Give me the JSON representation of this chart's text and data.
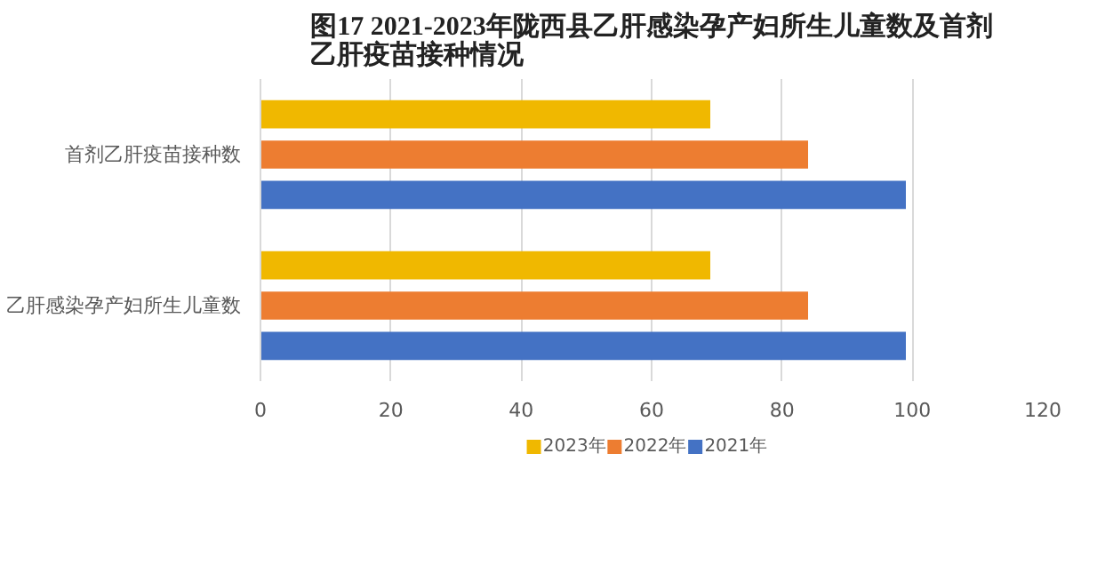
{
  "chart_data": {
    "type": "bar",
    "orientation": "horizontal",
    "title": "图17 2021-2023年陇西县乙肝感染孕产妇所生儿童数及首剂乙肝疫苗接种情况",
    "categories": [
      "首剂乙肝疫苗接种数",
      "乙肝感染孕产妇所生儿童数"
    ],
    "series": [
      {
        "name": "2023年",
        "color": "#f0b800",
        "values": [
          69,
          69
        ]
      },
      {
        "name": "2022年",
        "color": "#ed7d31",
        "values": [
          84,
          84
        ]
      },
      {
        "name": "2021年",
        "color": "#4472c4",
        "values": [
          99,
          99
        ]
      }
    ],
    "xlim": [
      0,
      120
    ],
    "xticks": [
      0,
      20,
      40,
      60,
      80,
      100,
      120
    ],
    "grid": "x",
    "legend": "bottom"
  }
}
